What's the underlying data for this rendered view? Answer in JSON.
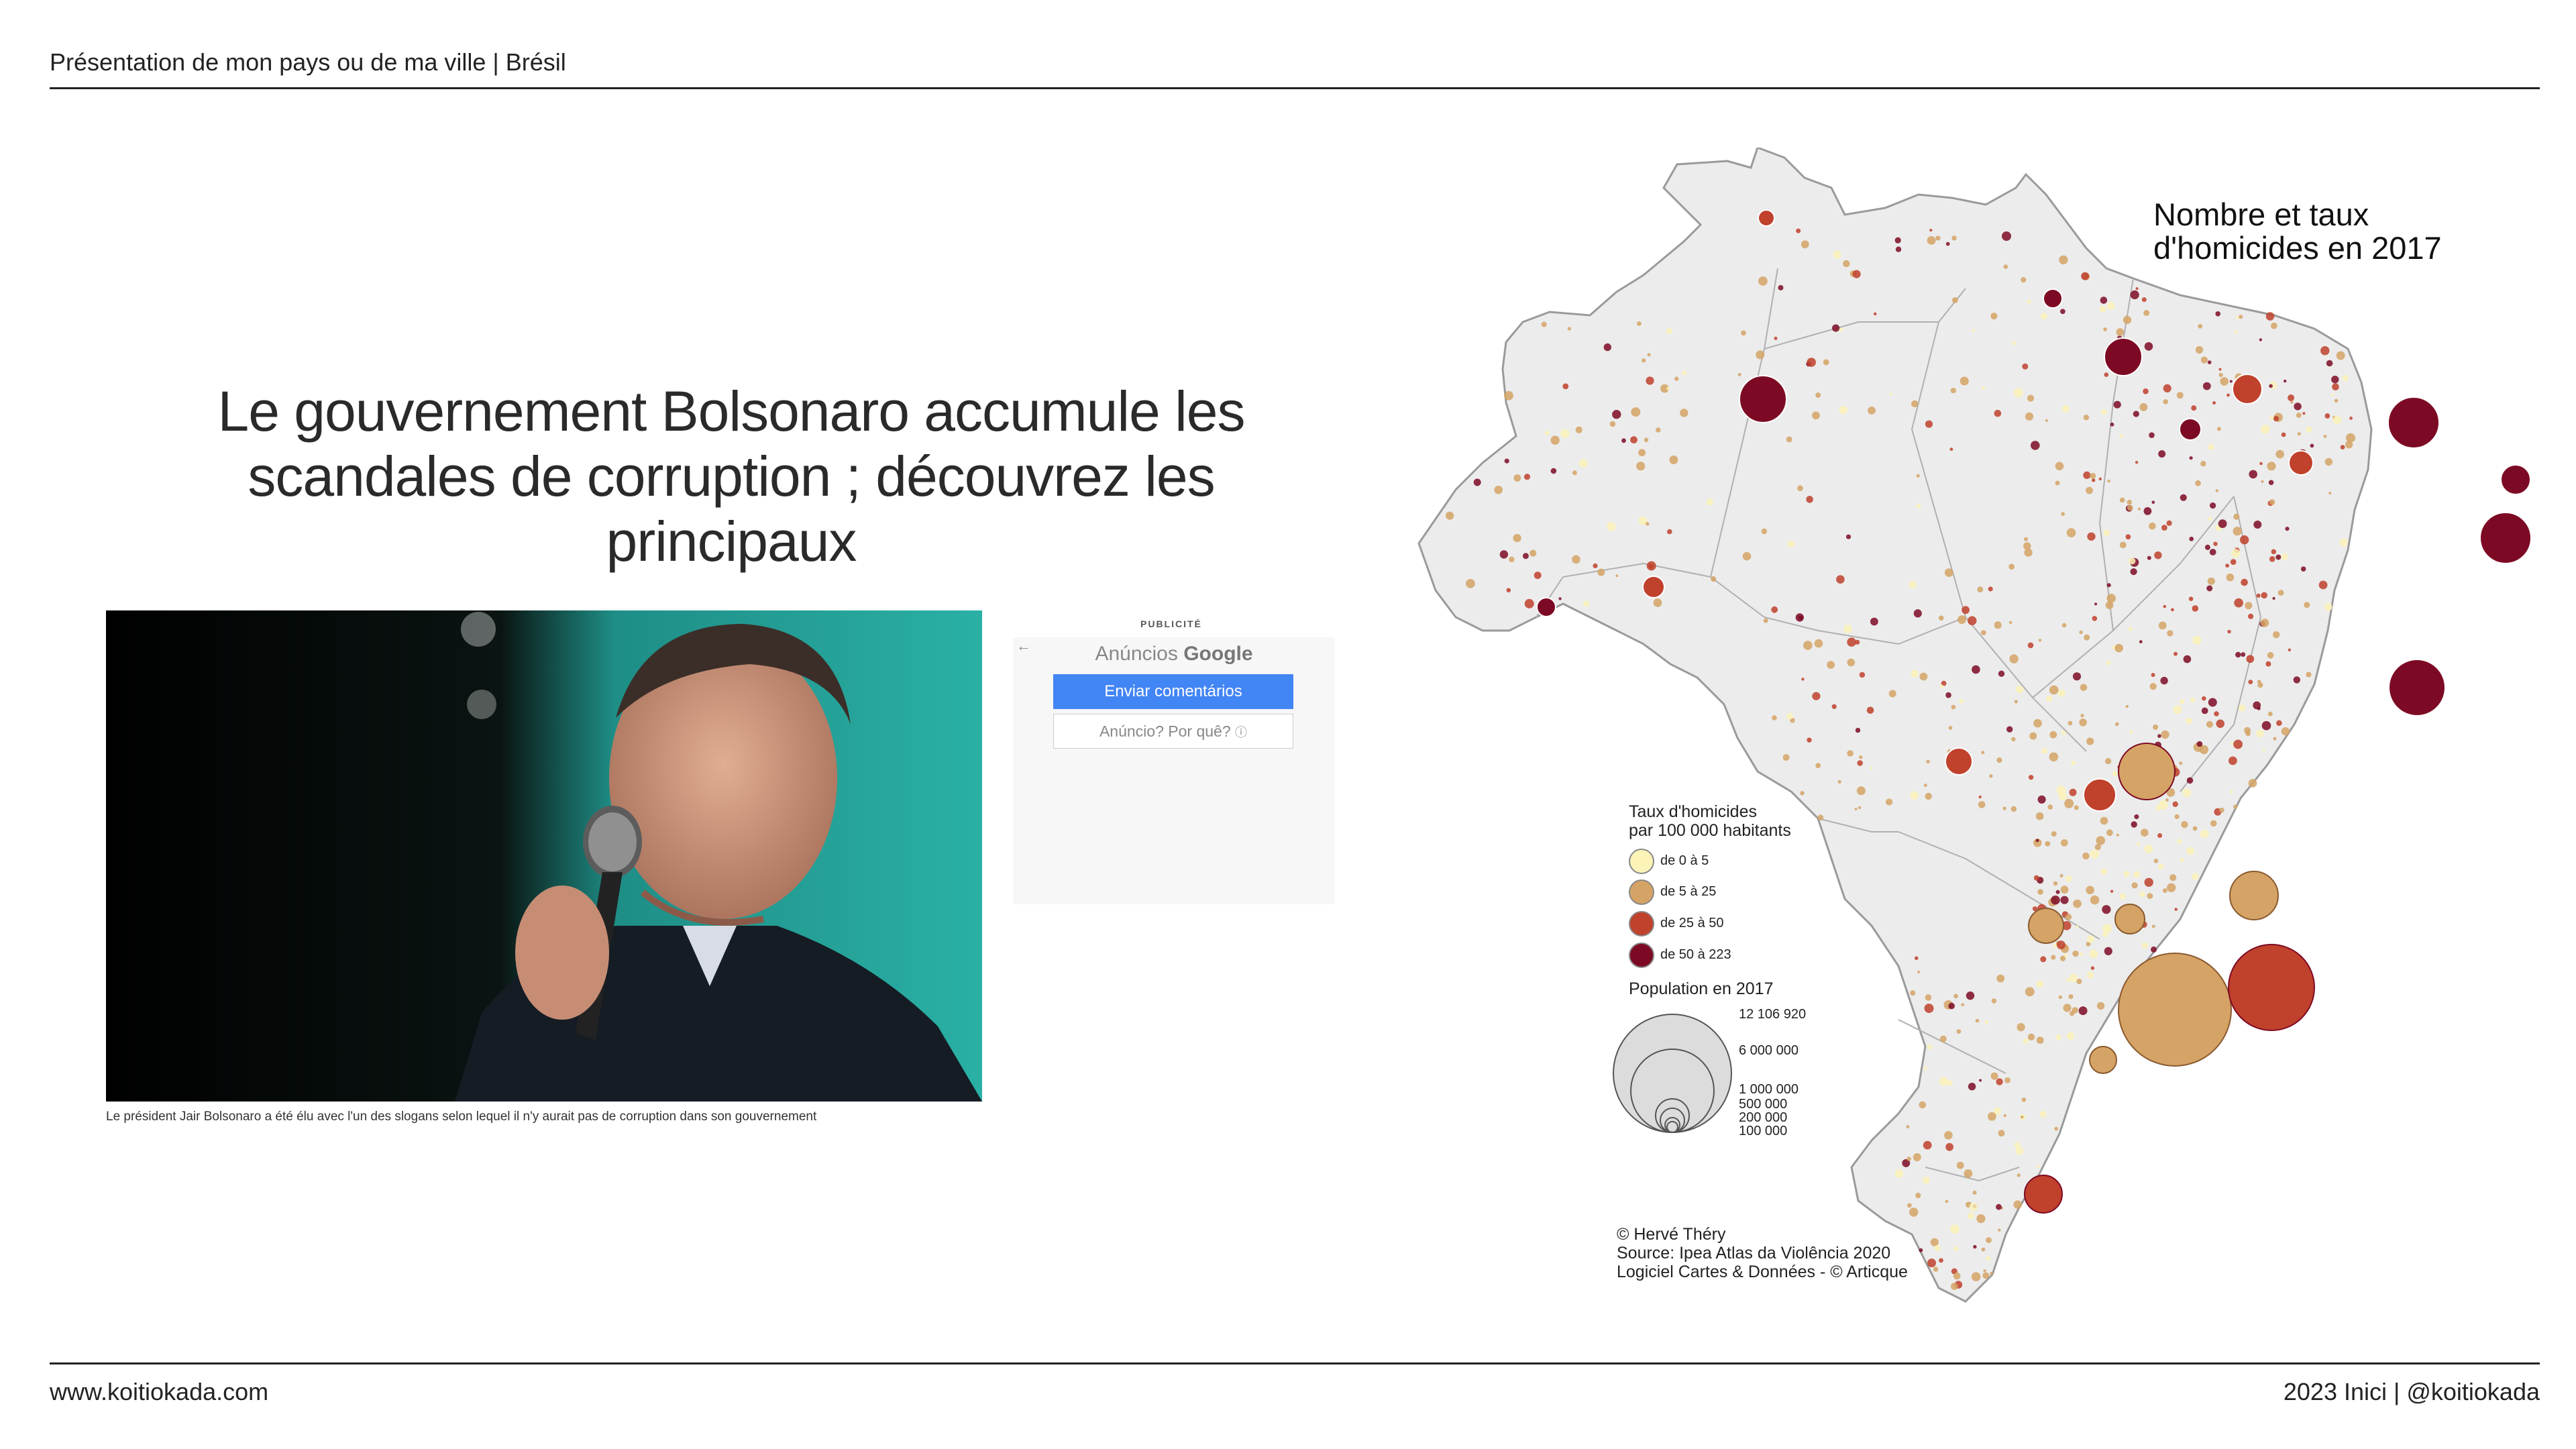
{
  "header": {
    "title": "Présentation de mon pays ou de ma ville | Brésil"
  },
  "footer": {
    "website": "www.koitiokada.com",
    "credit": "2023 Inici | @koitiokada"
  },
  "article": {
    "headline": "Le gouvernement Bolsonaro accumule les scandales de corruption ; découvrez les principaux",
    "caption": "Le président Jair Bolsonaro a été élu avec l'un des slogans selon lequel il n'y aurait pas de corruption dans son gouvernement"
  },
  "ad": {
    "label": "PUBLICITÉ",
    "back_icon": "←",
    "title_prefix": "Anúncios",
    "title_brand": "Google",
    "feedback_button": "Enviar comentários",
    "why_button": "Anúncio? Por quê?",
    "info_icon": "ⓘ"
  },
  "map": {
    "title_line1": "Nombre et taux",
    "title_line2": "d'homicides en 2017",
    "legend_title_line1": "Taux d'homicides",
    "legend_title_line2": "par 100 000 habitants",
    "legend_items": [
      {
        "label": "de 0 à 5",
        "color": "#fbf3b8"
      },
      {
        "label": "de 5 à 25",
        "color": "#d5a365"
      },
      {
        "label": "de 25 à 50",
        "color": "#c0412c"
      },
      {
        "label": "de 50 à 223",
        "color": "#7d0a24"
      }
    ],
    "population_title": "Population en 2017",
    "population_values": [
      "12 106 920",
      "6 000 000",
      "1 000 000",
      "500 000",
      "200 000",
      "100 000"
    ],
    "credit_line1": "© Hervé Théry",
    "credit_line2": "Source: Ipea Atlas da Violência 2020",
    "credit_line3": "Logiciel Cartes & Données - © Articque"
  }
}
